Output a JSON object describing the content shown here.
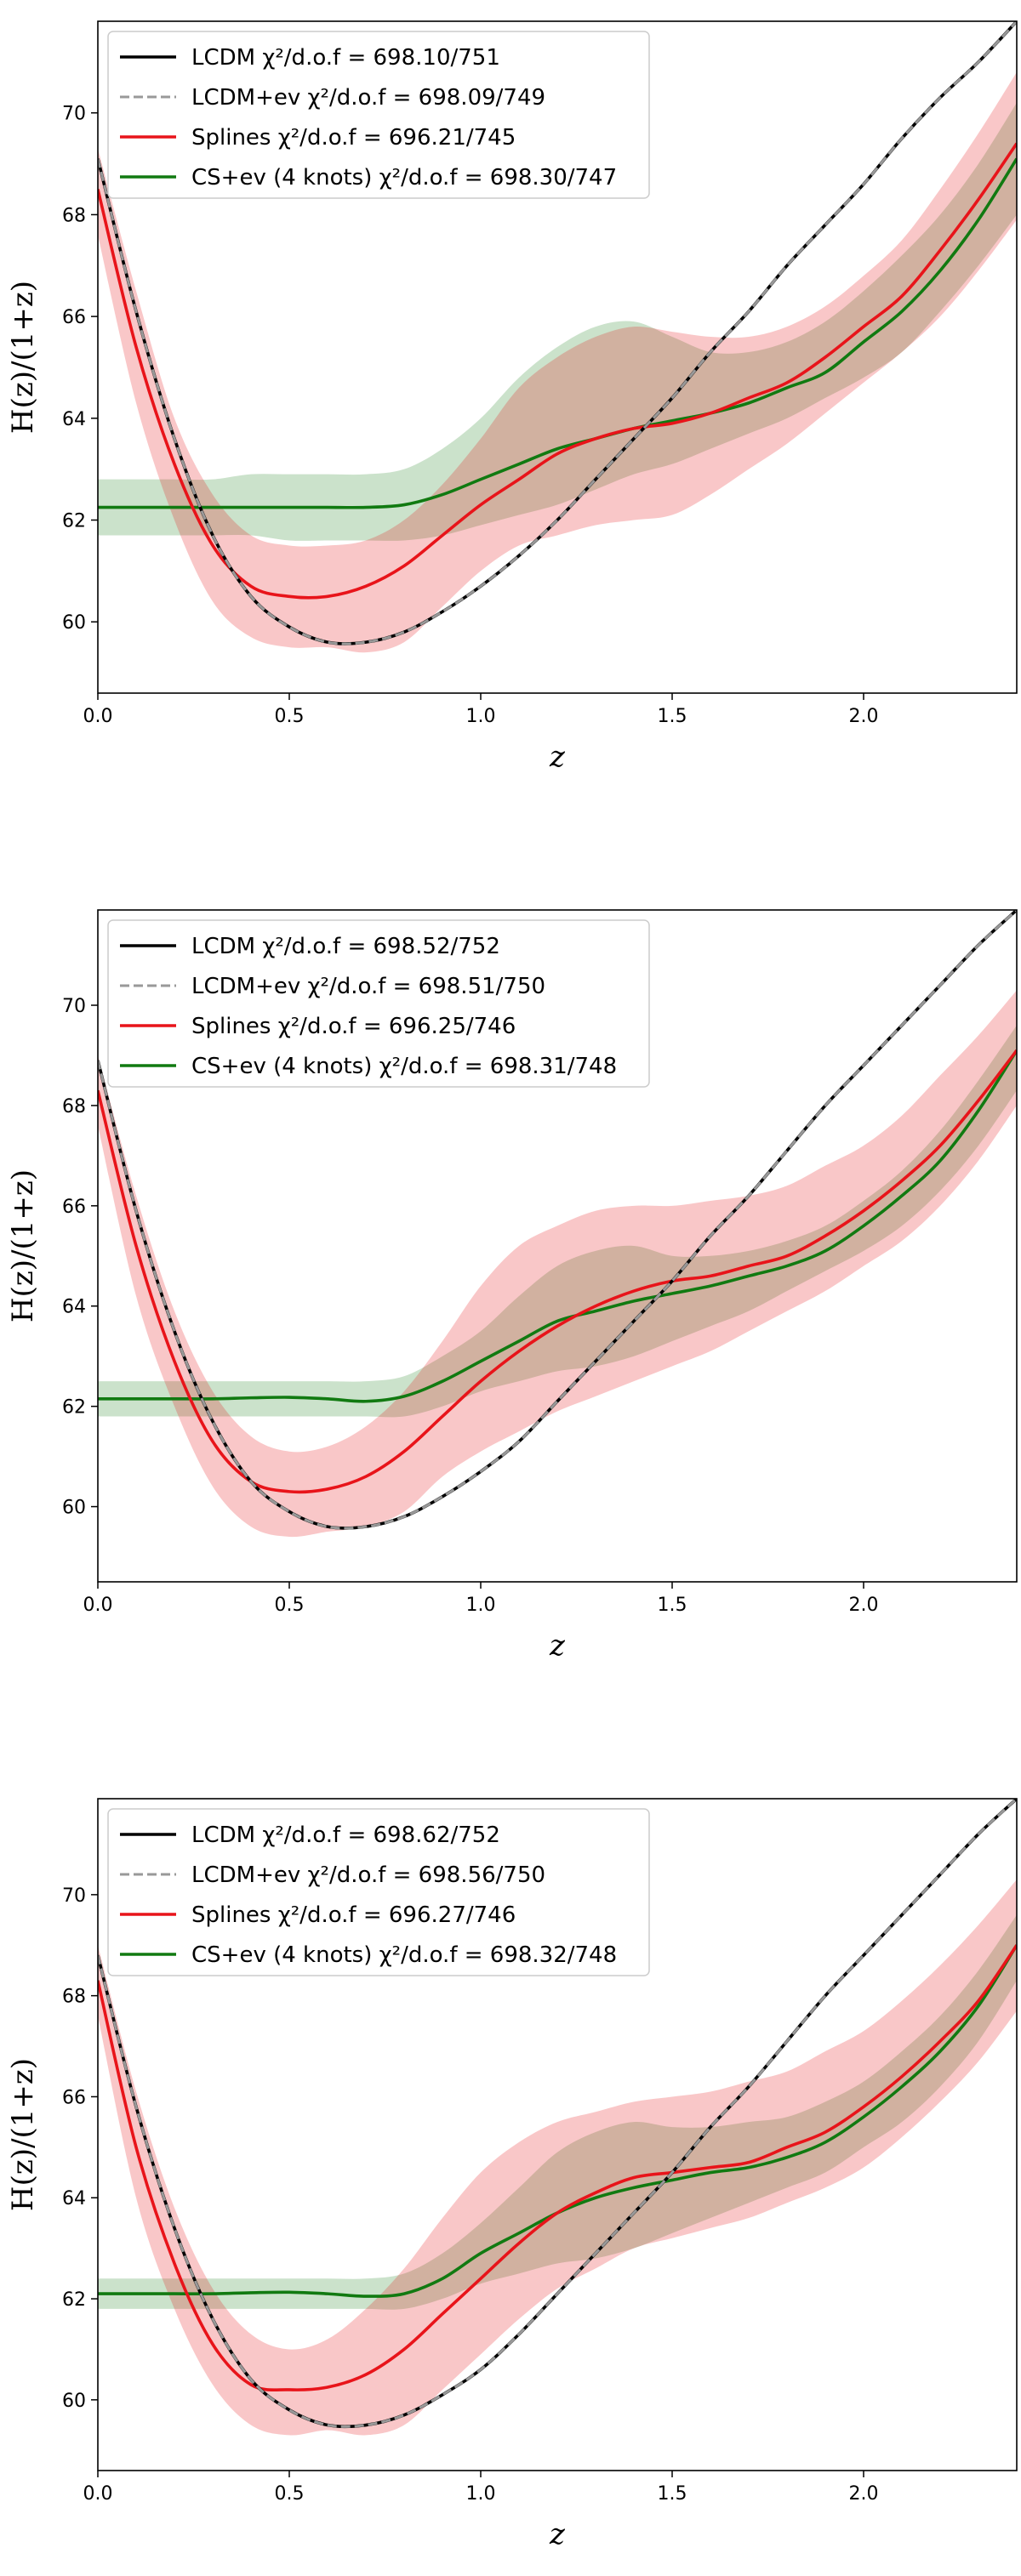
{
  "chart_data": [
    {
      "type": "line",
      "xlabel": "z",
      "ylabel": "H(z)/(1+z)",
      "xlim": [
        0,
        2.4
      ],
      "ylim": [
        58.6,
        71.8
      ],
      "xticks": [
        0.0,
        0.5,
        1.0,
        1.5,
        2.0
      ],
      "xtick_labels": [
        "0.0",
        "0.5",
        "1.0",
        "1.5",
        "2.0"
      ],
      "yticks": [
        60,
        62,
        64,
        66,
        68,
        70
      ],
      "ytick_labels": [
        "60",
        "62",
        "64",
        "66",
        "68",
        "70"
      ],
      "legend_position": "top-left",
      "x": [
        0.0,
        0.1,
        0.2,
        0.3,
        0.4,
        0.5,
        0.6,
        0.7,
        0.8,
        0.9,
        1.0,
        1.1,
        1.2,
        1.3,
        1.4,
        1.5,
        1.6,
        1.7,
        1.8,
        1.9,
        2.0,
        2.1,
        2.2,
        2.3,
        2.4
      ],
      "series": [
        {
          "name": "LCDM",
          "legend": "LCDM χ²/d.o.f = 698.10/751",
          "color": "#000000",
          "style": "solid",
          "values": [
            69.1,
            66.1,
            63.6,
            61.7,
            60.5,
            59.9,
            59.6,
            59.6,
            59.8,
            60.2,
            60.7,
            61.3,
            62.0,
            62.8,
            63.6,
            64.4,
            65.3,
            66.1,
            67.0,
            67.8,
            68.6,
            69.5,
            70.3,
            71.0,
            71.8
          ]
        },
        {
          "name": "LCDM+ev",
          "legend": "LCDM+ev χ²/d.o.f = 698.09/749",
          "color": "#999999",
          "style": "dashed",
          "values": [
            69.1,
            66.1,
            63.6,
            61.7,
            60.5,
            59.9,
            59.6,
            59.6,
            59.8,
            60.2,
            60.7,
            61.3,
            62.0,
            62.8,
            63.6,
            64.4,
            65.3,
            66.1,
            67.0,
            67.8,
            68.6,
            69.5,
            70.3,
            71.0,
            71.8
          ]
        },
        {
          "name": "Splines",
          "legend": "Splines χ²/d.o.f = 696.21/745",
          "color": "#e8141a",
          "style": "solid",
          "values": [
            68.5,
            65.4,
            63.1,
            61.5,
            60.7,
            60.5,
            60.5,
            60.7,
            61.1,
            61.7,
            62.3,
            62.8,
            63.3,
            63.6,
            63.8,
            63.9,
            64.1,
            64.4,
            64.7,
            65.2,
            65.8,
            66.4,
            67.3,
            68.3,
            69.4
          ],
          "band_upper": [
            69.3,
            66.5,
            64.0,
            62.5,
            61.7,
            61.5,
            61.5,
            61.6,
            62.0,
            62.7,
            63.6,
            64.6,
            65.2,
            65.6,
            65.8,
            65.7,
            65.6,
            65.6,
            65.8,
            66.2,
            66.8,
            67.5,
            68.5,
            69.6,
            70.8
          ],
          "band_lower": [
            67.6,
            64.3,
            62.0,
            60.4,
            59.7,
            59.5,
            59.5,
            59.4,
            59.6,
            60.3,
            61.0,
            61.5,
            61.7,
            61.9,
            62.0,
            62.1,
            62.5,
            63.0,
            63.5,
            64.1,
            64.7,
            65.3,
            66.0,
            66.9,
            67.9
          ]
        },
        {
          "name": "CS+ev (4 knots)",
          "legend": "CS+ev (4 knots) χ²/d.o.f = 698.30/747",
          "color": "#117a11",
          "style": "solid",
          "values": [
            62.25,
            62.25,
            62.25,
            62.25,
            62.25,
            62.25,
            62.25,
            62.25,
            62.3,
            62.5,
            62.8,
            63.1,
            63.4,
            63.6,
            63.8,
            63.95,
            64.1,
            64.3,
            64.6,
            64.9,
            65.5,
            66.1,
            66.9,
            67.9,
            69.1
          ],
          "band_upper": [
            62.8,
            62.8,
            62.8,
            62.8,
            62.9,
            62.9,
            62.9,
            62.9,
            63.0,
            63.4,
            64.0,
            64.8,
            65.4,
            65.8,
            65.9,
            65.6,
            65.3,
            65.3,
            65.5,
            65.9,
            66.5,
            67.2,
            68.0,
            69.0,
            70.2
          ],
          "band_lower": [
            61.7,
            61.7,
            61.7,
            61.7,
            61.7,
            61.6,
            61.6,
            61.6,
            61.6,
            61.7,
            61.9,
            62.1,
            62.3,
            62.6,
            62.9,
            63.1,
            63.4,
            63.7,
            64.0,
            64.4,
            64.8,
            65.3,
            66.1,
            67.0,
            68.0
          ]
        }
      ]
    },
    {
      "type": "line",
      "xlabel": "z",
      "ylabel": "H(z)/(1+z)",
      "xlim": [
        0,
        2.4
      ],
      "ylim": [
        58.5,
        71.9
      ],
      "xticks": [
        0.0,
        0.5,
        1.0,
        1.5,
        2.0
      ],
      "xtick_labels": [
        "0.0",
        "0.5",
        "1.0",
        "1.5",
        "2.0"
      ],
      "yticks": [
        60,
        62,
        64,
        66,
        68,
        70
      ],
      "ytick_labels": [
        "60",
        "62",
        "64",
        "66",
        "68",
        "70"
      ],
      "legend_position": "top-left",
      "x": [
        0.0,
        0.1,
        0.2,
        0.3,
        0.4,
        0.5,
        0.6,
        0.7,
        0.8,
        0.9,
        1.0,
        1.1,
        1.2,
        1.3,
        1.4,
        1.5,
        1.6,
        1.7,
        1.8,
        1.9,
        2.0,
        2.1,
        2.2,
        2.3,
        2.4
      ],
      "series": [
        {
          "name": "LCDM",
          "legend": "LCDM χ²/d.o.f = 698.52/752",
          "color": "#000000",
          "style": "solid",
          "values": [
            68.9,
            65.9,
            63.5,
            61.7,
            60.5,
            59.9,
            59.6,
            59.6,
            59.8,
            60.2,
            60.7,
            61.3,
            62.1,
            62.9,
            63.7,
            64.5,
            65.4,
            66.2,
            67.1,
            68.0,
            68.8,
            69.6,
            70.4,
            71.2,
            71.9
          ]
        },
        {
          "name": "LCDM+ev",
          "legend": "LCDM+ev χ²/d.o.f = 698.51/750",
          "color": "#999999",
          "style": "dashed",
          "values": [
            68.9,
            65.9,
            63.5,
            61.7,
            60.5,
            59.9,
            59.6,
            59.6,
            59.8,
            60.2,
            60.7,
            61.3,
            62.1,
            62.9,
            63.7,
            64.5,
            65.4,
            66.2,
            67.1,
            68.0,
            68.8,
            69.6,
            70.4,
            71.2,
            71.9
          ]
        },
        {
          "name": "Splines",
          "legend": "Splines χ²/d.o.f = 696.25/746",
          "color": "#e8141a",
          "style": "solid",
          "values": [
            68.3,
            65.2,
            62.9,
            61.3,
            60.5,
            60.3,
            60.35,
            60.6,
            61.1,
            61.8,
            62.5,
            63.1,
            63.6,
            64.0,
            64.3,
            64.5,
            64.6,
            64.8,
            65.0,
            65.4,
            65.9,
            66.5,
            67.2,
            68.1,
            69.1
          ],
          "band_upper": [
            69.0,
            66.2,
            63.9,
            62.3,
            61.4,
            61.1,
            61.2,
            61.6,
            62.3,
            63.3,
            64.4,
            65.2,
            65.6,
            65.9,
            66.0,
            66.0,
            66.1,
            66.2,
            66.4,
            66.8,
            67.2,
            67.8,
            68.6,
            69.4,
            70.3
          ],
          "band_lower": [
            67.6,
            64.2,
            62.0,
            60.4,
            59.6,
            59.4,
            59.5,
            59.6,
            59.9,
            60.6,
            61.1,
            61.5,
            61.9,
            62.2,
            62.5,
            62.8,
            63.1,
            63.5,
            63.9,
            64.3,
            64.8,
            65.3,
            66.0,
            66.9,
            68.0
          ]
        },
        {
          "name": "CS+ev (4 knots)",
          "legend": "CS+ev (4 knots) χ²/d.o.f = 698.31/748",
          "color": "#117a11",
          "style": "solid",
          "values": [
            62.15,
            62.15,
            62.15,
            62.15,
            62.17,
            62.18,
            62.15,
            62.1,
            62.2,
            62.5,
            62.9,
            63.3,
            63.7,
            63.9,
            64.1,
            64.25,
            64.4,
            64.6,
            64.8,
            65.1,
            65.6,
            66.2,
            66.9,
            67.9,
            69.1
          ],
          "band_upper": [
            62.5,
            62.5,
            62.5,
            62.5,
            62.5,
            62.5,
            62.5,
            62.5,
            62.6,
            63.0,
            63.5,
            64.2,
            64.8,
            65.1,
            65.2,
            65.0,
            65.0,
            65.1,
            65.3,
            65.6,
            66.1,
            66.7,
            67.5,
            68.5,
            69.6
          ],
          "band_lower": [
            61.8,
            61.8,
            61.8,
            61.8,
            61.8,
            61.8,
            61.8,
            61.8,
            61.8,
            62.0,
            62.3,
            62.5,
            62.7,
            62.8,
            63.0,
            63.3,
            63.6,
            63.9,
            64.3,
            64.7,
            65.1,
            65.6,
            66.3,
            67.2,
            68.3
          ]
        }
      ]
    },
    {
      "type": "line",
      "xlabel": "z",
      "ylabel": "H(z)/(1+z)",
      "xlim": [
        0,
        2.4
      ],
      "ylim": [
        58.6,
        71.9
      ],
      "xticks": [
        0.0,
        0.5,
        1.0,
        1.5,
        2.0
      ],
      "xtick_labels": [
        "0.0",
        "0.5",
        "1.0",
        "1.5",
        "2.0"
      ],
      "yticks": [
        60,
        62,
        64,
        66,
        68,
        70
      ],
      "ytick_labels": [
        "60",
        "62",
        "64",
        "66",
        "68",
        "70"
      ],
      "legend_position": "top-left",
      "x": [
        0.0,
        0.1,
        0.2,
        0.3,
        0.4,
        0.5,
        0.6,
        0.7,
        0.8,
        0.9,
        1.0,
        1.1,
        1.2,
        1.3,
        1.4,
        1.5,
        1.6,
        1.7,
        1.8,
        1.9,
        2.0,
        2.1,
        2.2,
        2.3,
        2.4
      ],
      "series": [
        {
          "name": "LCDM",
          "legend": "LCDM χ²/d.o.f = 698.62/752",
          "color": "#000000",
          "style": "solid",
          "values": [
            68.8,
            65.8,
            63.4,
            61.6,
            60.4,
            59.8,
            59.5,
            59.5,
            59.7,
            60.1,
            60.6,
            61.3,
            62.1,
            62.9,
            63.7,
            64.5,
            65.4,
            66.2,
            67.1,
            68.0,
            68.8,
            69.6,
            70.4,
            71.2,
            71.9
          ]
        },
        {
          "name": "LCDM+ev",
          "legend": "LCDM+ev χ²/d.o.f = 698.56/750",
          "color": "#999999",
          "style": "dashed",
          "values": [
            68.8,
            65.8,
            63.4,
            61.6,
            60.4,
            59.8,
            59.5,
            59.5,
            59.7,
            60.1,
            60.6,
            61.3,
            62.1,
            62.9,
            63.7,
            64.5,
            65.4,
            66.2,
            67.1,
            68.0,
            68.8,
            69.6,
            70.4,
            71.2,
            71.9
          ]
        },
        {
          "name": "Splines",
          "legend": "Splines χ²/d.o.f = 696.27/746",
          "color": "#e8141a",
          "style": "solid",
          "values": [
            68.3,
            65.0,
            62.7,
            61.1,
            60.3,
            60.2,
            60.25,
            60.5,
            61.0,
            61.7,
            62.4,
            63.1,
            63.7,
            64.1,
            64.4,
            64.5,
            64.6,
            64.7,
            65.0,
            65.3,
            65.8,
            66.4,
            67.1,
            67.9,
            69.0
          ],
          "band_upper": [
            69.0,
            66.1,
            63.8,
            62.2,
            61.3,
            61.0,
            61.2,
            61.8,
            62.6,
            63.6,
            64.5,
            65.1,
            65.5,
            65.7,
            65.9,
            66.0,
            66.1,
            66.3,
            66.5,
            66.9,
            67.3,
            67.9,
            68.6,
            69.4,
            70.3
          ],
          "band_lower": [
            67.6,
            64.0,
            61.8,
            60.3,
            59.5,
            59.3,
            59.4,
            59.3,
            59.5,
            60.2,
            60.9,
            61.6,
            62.2,
            62.6,
            63.0,
            63.2,
            63.4,
            63.6,
            63.9,
            64.2,
            64.6,
            65.2,
            65.9,
            66.7,
            67.7
          ]
        },
        {
          "name": "CS+ev (4 knots)",
          "legend": "CS+ev (4 knots) χ²/d.o.f = 698.32/748",
          "color": "#117a11",
          "style": "solid",
          "values": [
            62.1,
            62.1,
            62.1,
            62.1,
            62.12,
            62.13,
            62.1,
            62.05,
            62.1,
            62.4,
            62.9,
            63.3,
            63.7,
            64.0,
            64.2,
            64.35,
            64.5,
            64.6,
            64.8,
            65.1,
            65.6,
            66.2,
            66.9,
            67.8,
            69.0
          ],
          "band_upper": [
            62.4,
            62.4,
            62.4,
            62.4,
            62.4,
            62.4,
            62.4,
            62.4,
            62.5,
            62.9,
            63.5,
            64.2,
            64.9,
            65.3,
            65.5,
            65.4,
            65.4,
            65.5,
            65.6,
            65.9,
            66.3,
            66.9,
            67.6,
            68.5,
            69.6
          ],
          "band_lower": [
            61.8,
            61.8,
            61.8,
            61.8,
            61.8,
            61.8,
            61.8,
            61.8,
            61.8,
            62.0,
            62.3,
            62.5,
            62.7,
            62.8,
            63.0,
            63.3,
            63.6,
            63.9,
            64.2,
            64.5,
            65.0,
            65.5,
            66.2,
            67.1,
            68.3
          ]
        }
      ]
    }
  ]
}
